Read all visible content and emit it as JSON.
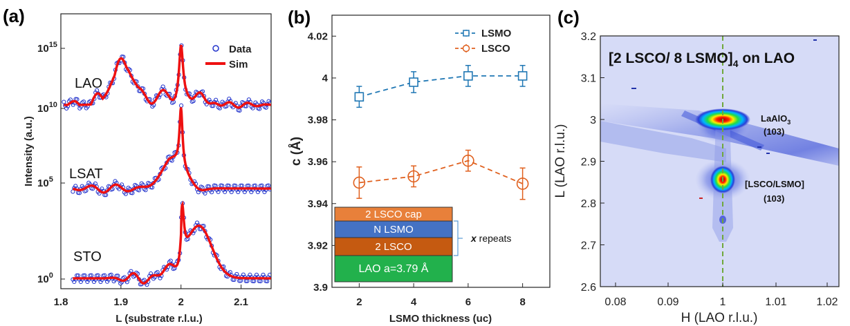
{
  "panel_labels": [
    "(a)",
    "(b)",
    "(c)"
  ],
  "colors": {
    "data_blue": "#2233cc",
    "sim_red": "#ee1111",
    "lsmo": "#1f77b4",
    "lsco": "#e0601e",
    "map_bg": "#d6dbf7",
    "dashed_line": "#6fa83a",
    "layer_cap": "#e8803a",
    "layer_lsmo": "#4472c4",
    "layer_lsco": "#c55a11",
    "layer_lao": "#22b14c"
  },
  "chart_data": [
    {
      "type": "line",
      "panel": "(a)",
      "xlabel": "L (substrate r.l.u.)",
      "ylabel": "Intensity (a.u.)",
      "xlim": [
        1.8,
        2.15
      ],
      "x_ticks": [
        "1.8",
        "1.9",
        "2",
        "2.1"
      ],
      "y_scale": "log",
      "y_ticks": [
        {
          "base": "10",
          "exp": "0"
        },
        {
          "base": "10",
          "exp": "5"
        },
        {
          "base": "10",
          "exp": "10"
        },
        {
          "base": "10",
          "exp": "15"
        }
      ],
      "legend": {
        "position": "top-right",
        "entries": [
          "Data",
          "Sim"
        ]
      },
      "series": [
        {
          "name": "LAO",
          "peak_x": 2.0,
          "feature_x": 1.9
        },
        {
          "name": "LSAT",
          "peak_x": 2.0,
          "feature_x": 1.99
        },
        {
          "name": "STO",
          "peak_x": 2.0,
          "feature_x": 2.035
        }
      ]
    },
    {
      "type": "scatter",
      "panel": "(b)",
      "xlabel": "LSMO thickness (uc)",
      "ylabel": "c (Å)",
      "xlim": [
        1,
        9
      ],
      "ylim": [
        3.9,
        4.03
      ],
      "x_ticks": [
        "2",
        "4",
        "6",
        "8"
      ],
      "y_ticks": [
        "3.9",
        "3.92",
        "3.94",
        "3.96",
        "3.98",
        "4",
        "4.02"
      ],
      "legend": {
        "position": "top-right"
      },
      "x": [
        2,
        4,
        6,
        8
      ],
      "series": [
        {
          "name": "LSMO",
          "values": [
            3.991,
            3.998,
            4.001,
            4.001
          ],
          "errors": [
            0.005,
            0.005,
            0.005,
            0.005
          ]
        },
        {
          "name": "LSCO",
          "values": [
            3.95,
            3.953,
            3.9605,
            3.9495
          ],
          "errors": [
            0.0075,
            0.005,
            0.005,
            0.0075
          ]
        }
      ]
    },
    {
      "type": "heatmap",
      "panel": "(c)",
      "title": "[2 LSCO/ 8 LSMO]",
      "title_sub": "4",
      "title_tail": " on LAO",
      "xlabel": "H (LAO r.l.u.)",
      "ylabel": "L (LAO r.l.u.)",
      "xlim": [
        0.075,
        1.025
      ],
      "ylim": [
        2.6,
        3.2
      ],
      "x_ticks": [
        "0.08",
        "0.09",
        "1",
        "1.01",
        "1.02"
      ],
      "y_ticks": [
        "2.6",
        "2.7",
        "2.8",
        "2.9",
        "3",
        "3.1",
        "3.2"
      ],
      "vline_x": 1,
      "peaks": [
        {
          "label": "LaAlO",
          "label_sub": "3",
          "index": "(103)",
          "h": 1.0,
          "l": 3.0
        },
        {
          "label": "[LSCO/LSMO]",
          "index": "(103)",
          "h": 1.0,
          "l": 2.855
        }
      ]
    }
  ],
  "layer_stack": {
    "layers": [
      "2 LSCO cap",
      "N LSMO",
      "2 LSCO",
      "LAO a=3.79 Å"
    ],
    "repeat_label": "x",
    "repeat_text": " repeats"
  }
}
